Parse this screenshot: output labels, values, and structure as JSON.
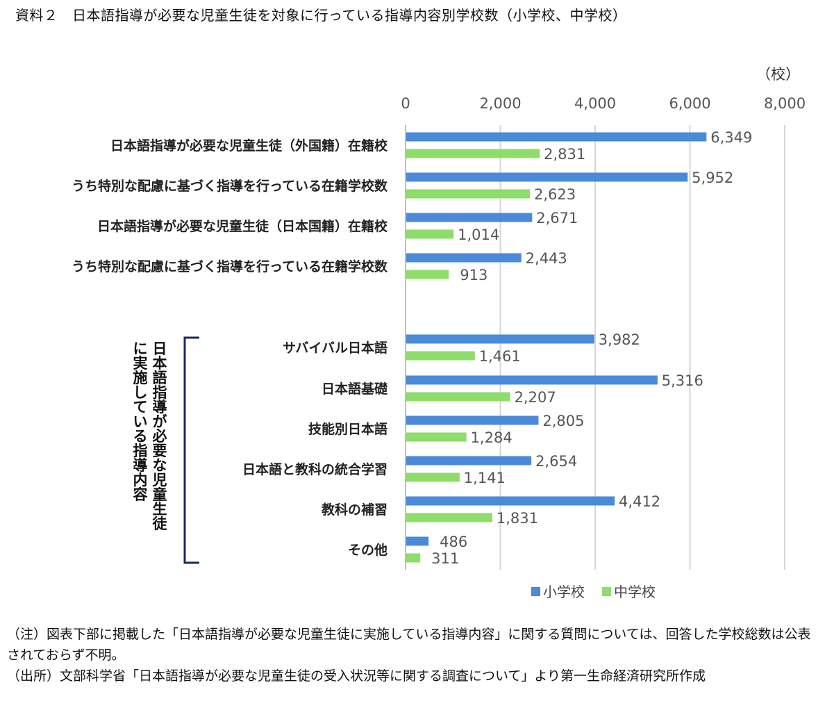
{
  "title": "資料２　日本語指導が必要な児童生徒を対象に行っている指導内容別学校数（小学校、中学校）",
  "chart_data": {
    "type": "bar",
    "orientation": "horizontal",
    "unit_label": "（校）",
    "xlim": [
      0,
      8000
    ],
    "x_ticks": [
      "0",
      "2,000",
      "4,000",
      "6,000",
      "8,000"
    ],
    "grid": true,
    "legend_position": "bottom",
    "categories": [
      "日本語指導が必要な児童生徒（外国籍）在籍校",
      "うち特別な配慮に基づく指導を行っている在籍学校数",
      "日本語指導が必要な児童生徒（日本国籍）在籍校",
      "うち特別な配慮に基づく指導を行っている在籍学校数",
      "サバイバル日本語",
      "日本語基礎",
      "技能別日本語",
      "日本語と教科の統合学習",
      "教科の補習",
      "その他"
    ],
    "series": [
      {
        "name": "小学校",
        "color": "#4a8ad8",
        "values": [
          6349,
          5952,
          2671,
          2443,
          3982,
          5316,
          2805,
          2654,
          4412,
          486
        ],
        "labels": [
          "6,349",
          "5,952",
          "2,671",
          "2,443",
          "3,982",
          "5,316",
          "2,805",
          "2,654",
          "4,412",
          "486"
        ]
      },
      {
        "name": "中学校",
        "color": "#8edc6a",
        "values": [
          2831,
          2623,
          1014,
          913,
          1461,
          2207,
          1284,
          1141,
          1831,
          311
        ],
        "labels": [
          "2,831",
          "2,623",
          "1,014",
          "913",
          "1,461",
          "2,207",
          "1,284",
          "1,141",
          "1,831",
          "311"
        ]
      }
    ],
    "group_label_line1": "日本語指導が必要な児童生徒",
    "group_label_line2": "に実施している指導内容"
  },
  "notes": [
    "（注）図表下部に掲載した「日本語指導が必要な児童生徒に実施している指導内容」に関する質問については、回答した学校総数は公表されておらず不明。",
    "（出所）文部科学省「日本語指導が必要な児童生徒の受入状況等に関する調査について」より第一生命経済研究所作成"
  ]
}
